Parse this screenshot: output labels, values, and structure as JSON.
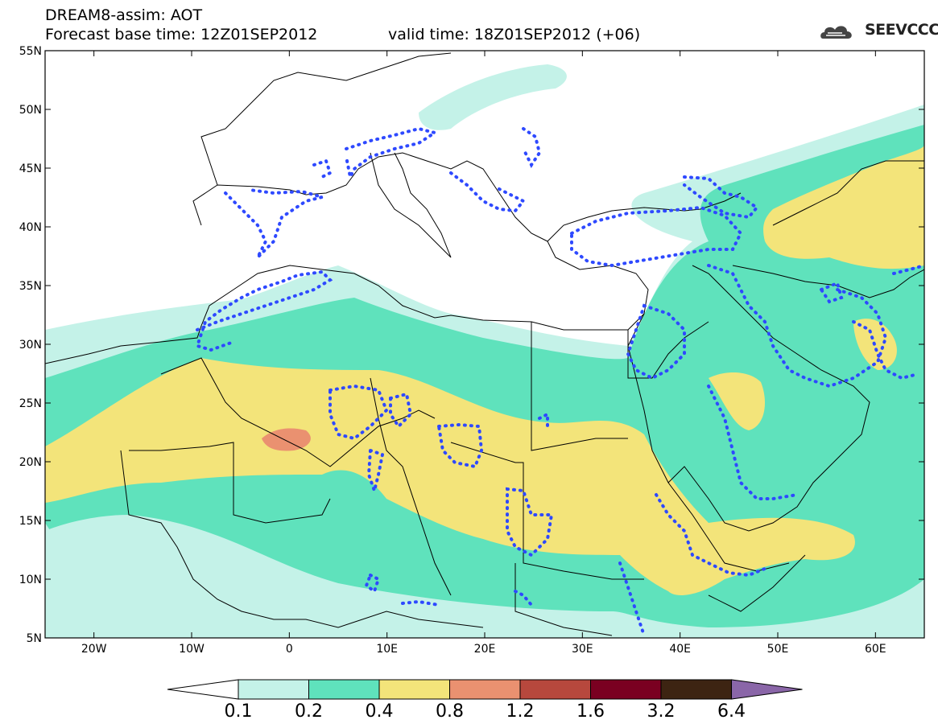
{
  "header": {
    "title": "DREAM8-assim: AOT",
    "forecast": "Forecast base time: 12Z01SEP2012",
    "valid": "valid time: 18Z01SEP2012 (+06)",
    "logo": "SEEVCCC"
  },
  "map": {
    "extent": {
      "lon": [
        -25,
        65
      ],
      "lat": [
        5,
        55
      ]
    },
    "lat_ticks": [
      {
        "v": 55,
        "label": "55N"
      },
      {
        "v": 50,
        "label": "50N"
      },
      {
        "v": 45,
        "label": "45N"
      },
      {
        "v": 40,
        "label": "40N"
      },
      {
        "v": 35,
        "label": "35N"
      },
      {
        "v": 30,
        "label": "30N"
      },
      {
        "v": 25,
        "label": "25N"
      },
      {
        "v": 20,
        "label": "20N"
      },
      {
        "v": 15,
        "label": "15N"
      },
      {
        "v": 10,
        "label": "10N"
      },
      {
        "v": 5,
        "label": "5N"
      }
    ],
    "lon_ticks": [
      {
        "v": -20,
        "label": "20W"
      },
      {
        "v": -10,
        "label": "10W"
      },
      {
        "v": 0,
        "label": "0"
      },
      {
        "v": 10,
        "label": "10E"
      },
      {
        "v": 20,
        "label": "20E"
      },
      {
        "v": 30,
        "label": "30E"
      },
      {
        "v": 40,
        "label": "40E"
      },
      {
        "v": 50,
        "label": "50E"
      },
      {
        "v": 60,
        "label": "60E"
      }
    ]
  },
  "colorbar": {
    "levels": [
      "0.1",
      "0.2",
      "0.4",
      "0.8",
      "1.2",
      "1.6",
      "3.2",
      "6.4"
    ],
    "colors": [
      "#c4f2e8",
      "#5fe2bc",
      "#f3e47a",
      "#ea9170",
      "#b7483d",
      "#7a0021",
      "#3d2412",
      "#8a66a8"
    ]
  }
}
